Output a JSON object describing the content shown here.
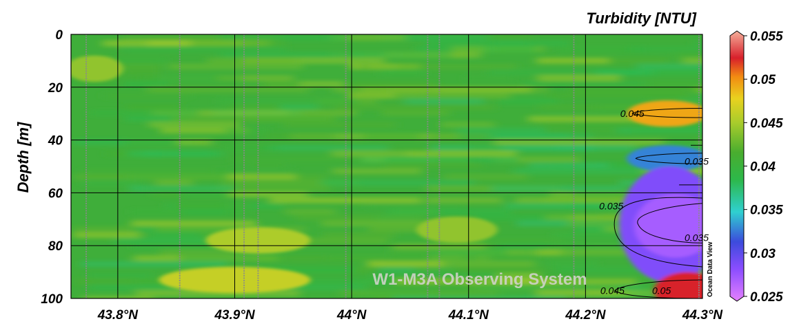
{
  "chart_data": {
    "type": "heatmap",
    "title": "Turbidity [NTU]",
    "ylabel": "Depth [m]",
    "xlabel": "",
    "x_ticks": [
      "43.8°N",
      "43.9°N",
      "44°N",
      "44.1°N",
      "44.2°N",
      "44.3°N"
    ],
    "x_tick_values": [
      43.8,
      43.9,
      44.0,
      44.1,
      44.2,
      44.3
    ],
    "y_ticks": [
      "0",
      "20",
      "40",
      "60",
      "80",
      "100"
    ],
    "y_tick_values": [
      0,
      20,
      40,
      60,
      80,
      100
    ],
    "xlim": [
      43.76,
      44.3
    ],
    "ylim": [
      0,
      100
    ],
    "y_inverted": true,
    "colorbar": {
      "range": [
        0.025,
        0.055
      ],
      "ticks": [
        "0.055",
        "0.05",
        "0.045",
        "0.04",
        "0.035",
        "0.03",
        "0.025"
      ],
      "tick_values": [
        0.055,
        0.05,
        0.045,
        0.04,
        0.035,
        0.03,
        0.025
      ],
      "colors": [
        "#e580ff",
        "#8a4dff",
        "#3c4bdc",
        "#2fd0d0",
        "#2db84a",
        "#49ad2f",
        "#a8cc2c",
        "#e9d21f",
        "#f28c12",
        "#d8202b",
        "#f5b09b"
      ]
    },
    "background_value": 0.04,
    "station_longitudes_lat": [
      43.773,
      43.853,
      43.908,
      43.92,
      43.995,
      44.065,
      44.075,
      44.19,
      44.297
    ],
    "features": [
      {
        "kind": "band",
        "lat_from": 43.76,
        "lat_to": 43.8,
        "depth": 13,
        "value": 0.044
      },
      {
        "kind": "band",
        "lat_from": 43.84,
        "lat_to": 43.96,
        "depth": 93,
        "value": 0.046
      },
      {
        "kind": "band",
        "lat_from": 43.88,
        "lat_to": 43.96,
        "depth": 78,
        "value": 0.045
      },
      {
        "kind": "band",
        "lat_from": 44.06,
        "lat_to": 44.12,
        "depth": 74,
        "value": 0.044
      },
      {
        "kind": "band",
        "lat_from": 44.24,
        "lat_to": 44.3,
        "depth": 30,
        "value": 0.049
      },
      {
        "kind": "band",
        "lat_from": 44.24,
        "lat_to": 44.3,
        "depth": 47,
        "value": 0.033
      },
      {
        "kind": "core",
        "lat_from": 44.23,
        "lat_to": 44.3,
        "depth": 72,
        "value": 0.029
      },
      {
        "kind": "core",
        "lat_from": 44.26,
        "lat_to": 44.3,
        "depth": 97,
        "value": 0.052
      }
    ],
    "contour_labels": [
      {
        "text": "0.045",
        "lat": 44.24,
        "depth": 30
      },
      {
        "text": "0.035",
        "lat": 44.295,
        "depth": 48
      },
      {
        "text": "0.035",
        "lat": 44.222,
        "depth": 65
      },
      {
        "text": "0.035",
        "lat": 44.295,
        "depth": 77
      },
      {
        "text": "0.045",
        "lat": 44.223,
        "depth": 97
      },
      {
        "text": "0.05",
        "lat": 44.265,
        "depth": 97
      }
    ],
    "grid": true
  },
  "watermark": "W1-M3A Observing System",
  "software_label": "Ocean Data View"
}
